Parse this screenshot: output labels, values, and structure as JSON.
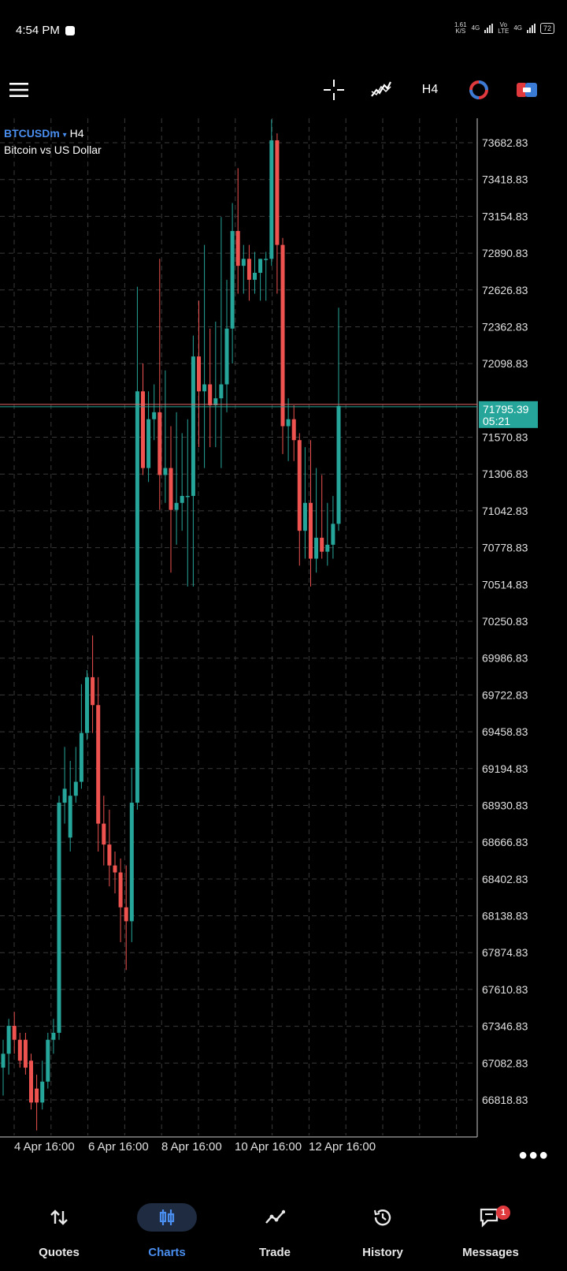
{
  "status_bar": {
    "time": "4:54 PM",
    "net_speed_value": "1.61",
    "net_speed_unit": "K/S",
    "net1": "4G",
    "net2_top": "Vo",
    "net2_bottom": "LTE",
    "net3": "4G",
    "battery": "72"
  },
  "toolbar": {
    "menu_icon": "hamburger-menu-icon",
    "crosshair_icon": "crosshair-icon",
    "indicators_icon": "indicators-icon",
    "timeframe": "H4",
    "icon_4": "trading-signals-icon",
    "icon_5": "account-switch-icon"
  },
  "chart": {
    "symbol": "BTCUSDm",
    "timeframe": "H4",
    "description": "Bitcoin vs US Dollar",
    "current_price": "71795.39",
    "countdown": "05:21",
    "more_icon": "more-dots-icon"
  },
  "chart_data": {
    "type": "candlestick",
    "symbol": "BTCUSDm",
    "timeframe": "H4",
    "y_ticks": [
      73682.83,
      73418.83,
      73154.83,
      72890.83,
      72626.83,
      72362.83,
      72098.83,
      71570.83,
      71306.83,
      71042.83,
      70778.83,
      70514.83,
      70250.83,
      69986.83,
      69722.83,
      69458.83,
      69194.83,
      68930.83,
      68666.83,
      68402.83,
      68138.83,
      67874.83,
      67610.83,
      67346.83,
      67082.83,
      66818.83
    ],
    "y_tick_labels": [
      "73682.83",
      "73418.83",
      "73154.83",
      "72890.83",
      "72626.83",
      "72362.83",
      "72098.83",
      "71570.83",
      "71306.83",
      "71042.83",
      "70778.83",
      "70514.83",
      "70250.83",
      "69986.83",
      "69722.83",
      "69458.83",
      "69194.83",
      "68930.83",
      "68666.83",
      "68402.83",
      "68138.83",
      "67874.83",
      "67610.83",
      "67346.83",
      "67082.83",
      "66818.83"
    ],
    "ylim": [
      66700,
      73850
    ],
    "x_tick_labels": [
      "4 Apr 16:00",
      "6 Apr 16:00",
      "8 Apr 16:00",
      "10 Apr 16:00",
      "12 Apr 16:00"
    ],
    "current_price": 71795.39,
    "up_color": "#26a69a",
    "down_color": "#ef5350",
    "candles": [
      {
        "o": 67050,
        "h": 67250,
        "l": 66850,
        "c": 67150
      },
      {
        "o": 67150,
        "h": 67400,
        "l": 67000,
        "c": 67350
      },
      {
        "o": 67350,
        "h": 67450,
        "l": 67150,
        "c": 67250
      },
      {
        "o": 67250,
        "h": 67300,
        "l": 67050,
        "c": 67100
      },
      {
        "o": 67250,
        "h": 67300,
        "l": 67000,
        "c": 67050
      },
      {
        "o": 67100,
        "h": 67150,
        "l": 66750,
        "c": 66800
      },
      {
        "o": 66900,
        "h": 67000,
        "l": 66600,
        "c": 66800
      },
      {
        "o": 66800,
        "h": 67100,
        "l": 66750,
        "c": 66950
      },
      {
        "o": 66950,
        "h": 67300,
        "l": 66900,
        "c": 67250
      },
      {
        "o": 67250,
        "h": 67400,
        "l": 67150,
        "c": 67300
      },
      {
        "o": 67300,
        "h": 69000,
        "l": 67250,
        "c": 68950
      },
      {
        "o": 68950,
        "h": 69350,
        "l": 68800,
        "c": 69050
      },
      {
        "o": 68700,
        "h": 69250,
        "l": 68600,
        "c": 69000
      },
      {
        "o": 69000,
        "h": 69350,
        "l": 68950,
        "c": 69100
      },
      {
        "o": 69100,
        "h": 69800,
        "l": 69050,
        "c": 69450
      },
      {
        "o": 69450,
        "h": 69900,
        "l": 69400,
        "c": 69850
      },
      {
        "o": 69850,
        "h": 70150,
        "l": 69450,
        "c": 69650
      },
      {
        "o": 69650,
        "h": 69850,
        "l": 68600,
        "c": 68800
      },
      {
        "o": 68800,
        "h": 69000,
        "l": 68500,
        "c": 68650
      },
      {
        "o": 68650,
        "h": 68900,
        "l": 68350,
        "c": 68500
      },
      {
        "o": 68500,
        "h": 68600,
        "l": 68300,
        "c": 68450
      },
      {
        "o": 68450,
        "h": 68550,
        "l": 67950,
        "c": 68200
      },
      {
        "o": 68200,
        "h": 68500,
        "l": 67750,
        "c": 68100
      },
      {
        "o": 68100,
        "h": 69200,
        "l": 67950,
        "c": 68950
      },
      {
        "o": 68950,
        "h": 72650,
        "l": 68900,
        "c": 71900
      },
      {
        "o": 71900,
        "h": 72100,
        "l": 71300,
        "c": 71350
      },
      {
        "o": 71350,
        "h": 71900,
        "l": 71250,
        "c": 71700
      },
      {
        "o": 71700,
        "h": 71950,
        "l": 71550,
        "c": 71750
      },
      {
        "o": 71750,
        "h": 72850,
        "l": 71050,
        "c": 71300
      },
      {
        "o": 71300,
        "h": 72050,
        "l": 71100,
        "c": 71350
      },
      {
        "o": 71350,
        "h": 71650,
        "l": 70600,
        "c": 71050
      },
      {
        "o": 71050,
        "h": 71750,
        "l": 70800,
        "c": 71100
      },
      {
        "o": 71100,
        "h": 71600,
        "l": 70900,
        "c": 71150
      },
      {
        "o": 71150,
        "h": 71700,
        "l": 70500,
        "c": 71150
      },
      {
        "o": 71150,
        "h": 72300,
        "l": 70500,
        "c": 72150
      },
      {
        "o": 72150,
        "h": 72550,
        "l": 71500,
        "c": 71900
      },
      {
        "o": 71900,
        "h": 72950,
        "l": 71350,
        "c": 71950
      },
      {
        "o": 71950,
        "h": 72350,
        "l": 71500,
        "c": 71800
      },
      {
        "o": 71800,
        "h": 72400,
        "l": 71500,
        "c": 71850
      },
      {
        "o": 71850,
        "h": 73150,
        "l": 71350,
        "c": 71950
      },
      {
        "o": 71950,
        "h": 72700,
        "l": 71750,
        "c": 72350
      },
      {
        "o": 72350,
        "h": 73250,
        "l": 72100,
        "c": 73050
      },
      {
        "o": 73050,
        "h": 73500,
        "l": 72600,
        "c": 72800
      },
      {
        "o": 72800,
        "h": 72950,
        "l": 72600,
        "c": 72850
      },
      {
        "o": 72850,
        "h": 72950,
        "l": 72550,
        "c": 72700
      },
      {
        "o": 72700,
        "h": 72900,
        "l": 72600,
        "c": 72750
      },
      {
        "o": 72750,
        "h": 72850,
        "l": 72550,
        "c": 72850
      },
      {
        "o": 72850,
        "h": 72900,
        "l": 72550,
        "c": 72850
      },
      {
        "o": 72850,
        "h": 73850,
        "l": 72800,
        "c": 73700
      },
      {
        "o": 73700,
        "h": 73750,
        "l": 72600,
        "c": 72950
      },
      {
        "o": 72950,
        "h": 73000,
        "l": 71450,
        "c": 71650
      },
      {
        "o": 71650,
        "h": 71850,
        "l": 71400,
        "c": 71700
      },
      {
        "o": 71700,
        "h": 71800,
        "l": 71400,
        "c": 71550
      },
      {
        "o": 71550,
        "h": 71600,
        "l": 70650,
        "c": 70900
      },
      {
        "o": 70900,
        "h": 71500,
        "l": 70700,
        "c": 71100
      },
      {
        "o": 71100,
        "h": 71550,
        "l": 70500,
        "c": 70700
      },
      {
        "o": 70700,
        "h": 71350,
        "l": 70600,
        "c": 70850
      },
      {
        "o": 70850,
        "h": 71300,
        "l": 70700,
        "c": 70750
      },
      {
        "o": 70750,
        "h": 71100,
        "l": 70650,
        "c": 70800
      },
      {
        "o": 70800,
        "h": 71150,
        "l": 70700,
        "c": 70950
      },
      {
        "o": 70950,
        "h": 72500,
        "l": 70900,
        "c": 71795.39
      }
    ]
  },
  "nav": {
    "quotes": {
      "label": "Quotes",
      "icon": "quotes-arrows-icon"
    },
    "charts": {
      "label": "Charts",
      "icon": "candles-icon"
    },
    "trade": {
      "label": "Trade",
      "icon": "trade-line-icon"
    },
    "history": {
      "label": "History",
      "icon": "history-clock-icon"
    },
    "messages": {
      "label": "Messages",
      "icon": "messages-icon",
      "badge": "1"
    }
  }
}
